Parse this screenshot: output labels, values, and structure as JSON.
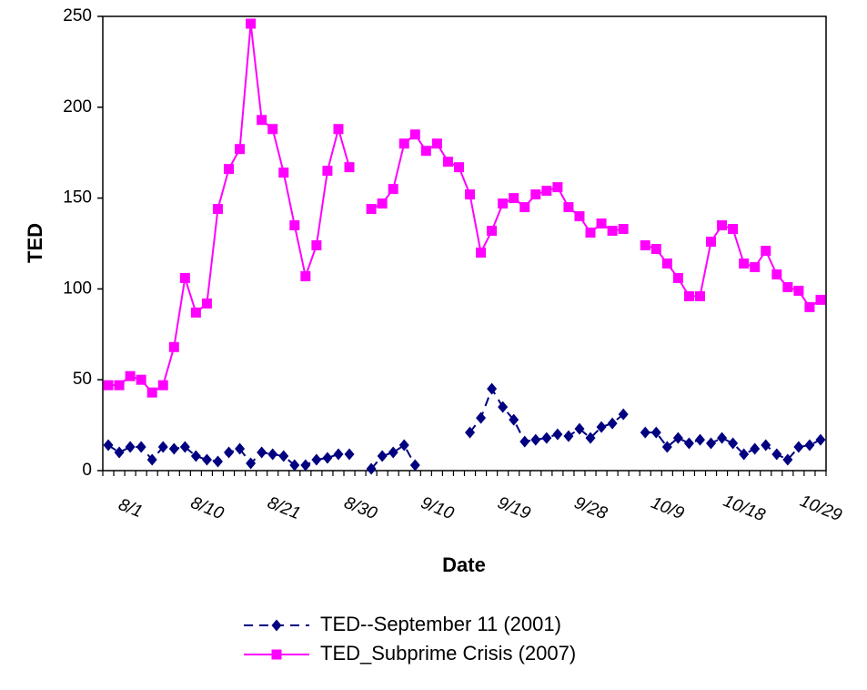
{
  "chart_data": {
    "type": "line",
    "x_label": "Date",
    "y_label": "TED",
    "categories": [
      null,
      null,
      "8/1",
      null,
      null,
      null,
      null,
      null,
      null,
      "8/10",
      null,
      null,
      null,
      null,
      null,
      null,
      "8/21",
      null,
      null,
      null,
      null,
      null,
      null,
      "8/30",
      null,
      null,
      null,
      null,
      null,
      null,
      "9/10",
      null,
      null,
      null,
      null,
      null,
      null,
      "9/19",
      null,
      null,
      null,
      null,
      null,
      null,
      "9/28",
      null,
      null,
      null,
      null,
      null,
      null,
      "10/9",
      null,
      null,
      null,
      null,
      null,
      null,
      "10/18",
      null,
      null,
      null,
      null,
      null,
      null,
      "10/29"
    ],
    "series": [
      {
        "name": "TED--September 11 (2001)",
        "color": "#000080",
        "marker": "diamond",
        "line_style": "dashed",
        "values": [
          14,
          10,
          13,
          13,
          6,
          13,
          12,
          13,
          8,
          6,
          5,
          10,
          12,
          4,
          10,
          9,
          8,
          3,
          3,
          6,
          7,
          9,
          9,
          null,
          1,
          8,
          10,
          14,
          3,
          null,
          null,
          null,
          null,
          21,
          29,
          45,
          35,
          28,
          16,
          17,
          18,
          20,
          19,
          23,
          18,
          24,
          26,
          31,
          null,
          21,
          21,
          13,
          18,
          15,
          17,
          15,
          18,
          15,
          9,
          12,
          14,
          9,
          6,
          13,
          14,
          17
        ]
      },
      {
        "name": "TED_Subprime Crisis (2007)",
        "color": "#ff00ff",
        "marker": "square",
        "line_style": "solid",
        "values": [
          47,
          47,
          52,
          50,
          43,
          47,
          68,
          106,
          87,
          92,
          144,
          166,
          177,
          246,
          193,
          188,
          164,
          135,
          107,
          124,
          165,
          188,
          167,
          null,
          144,
          147,
          155,
          180,
          185,
          176,
          180,
          170,
          167,
          152,
          120,
          132,
          147,
          150,
          145,
          152,
          154,
          156,
          145,
          140,
          131,
          136,
          132,
          133,
          null,
          124,
          122,
          114,
          106,
          96,
          96,
          126,
          135,
          133,
          114,
          112,
          121,
          108,
          101,
          99,
          90,
          94
        ]
      }
    ],
    "ylim": [
      0,
      250
    ],
    "yticks": [
      0,
      50,
      100,
      150,
      200,
      250
    ],
    "grid": false,
    "legend": "bottom"
  }
}
